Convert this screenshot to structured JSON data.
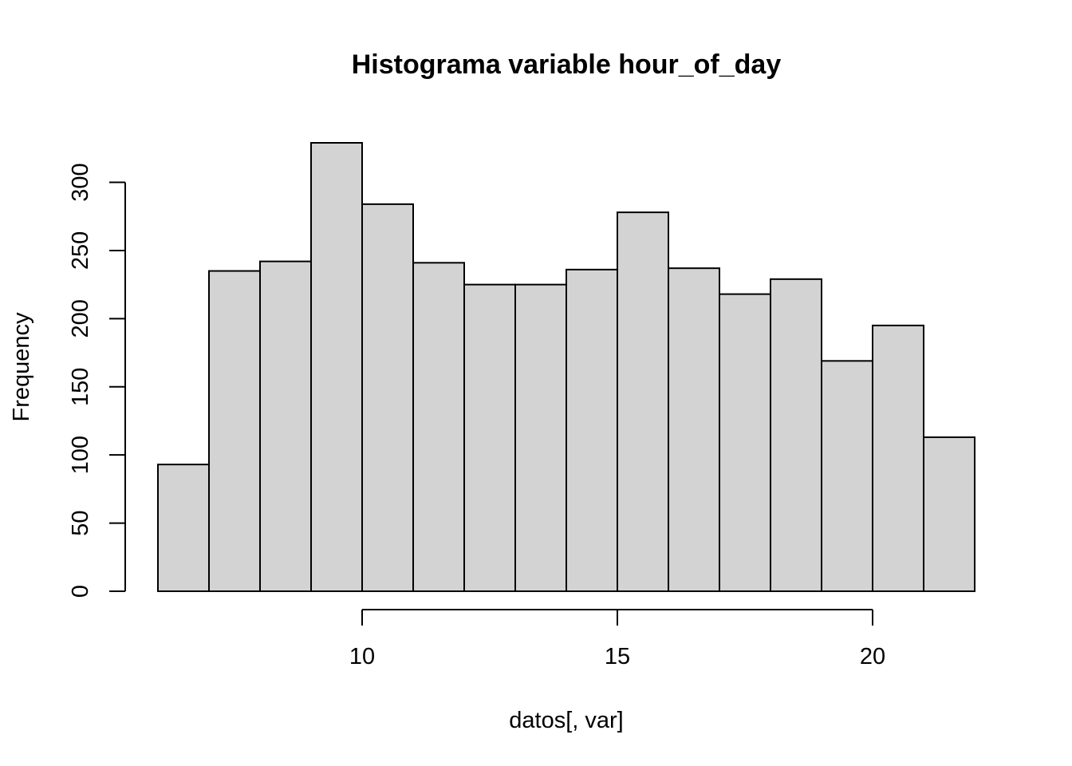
{
  "chart_data": {
    "type": "bar",
    "title": "Histograma variable hour_of_day",
    "xlabel": "datos[, var]",
    "ylabel": "Frequency",
    "bins": [
      {
        "from": 6,
        "to": 7,
        "count": 93
      },
      {
        "from": 7,
        "to": 8,
        "count": 235
      },
      {
        "from": 8,
        "to": 9,
        "count": 242
      },
      {
        "from": 9,
        "to": 10,
        "count": 329
      },
      {
        "from": 10,
        "to": 11,
        "count": 284
      },
      {
        "from": 11,
        "to": 12,
        "count": 241
      },
      {
        "from": 12,
        "to": 13,
        "count": 225
      },
      {
        "from": 13,
        "to": 14,
        "count": 225
      },
      {
        "from": 14,
        "to": 15,
        "count": 236
      },
      {
        "from": 15,
        "to": 16,
        "count": 278
      },
      {
        "from": 16,
        "to": 17,
        "count": 237
      },
      {
        "from": 17,
        "to": 18,
        "count": 218
      },
      {
        "from": 18,
        "to": 19,
        "count": 229
      },
      {
        "from": 19,
        "to": 20,
        "count": 169
      },
      {
        "from": 20,
        "to": 21,
        "count": 195
      },
      {
        "from": 21,
        "to": 22,
        "count": 113
      }
    ],
    "xticks": [
      10,
      15,
      20
    ],
    "yticks": [
      0,
      50,
      100,
      150,
      200,
      250,
      300
    ],
    "xlim": [
      6,
      22
    ],
    "ylim": [
      0,
      329
    ],
    "colors": {
      "bar_fill": "#d3d3d3",
      "bar_stroke": "#000000"
    },
    "grid": false,
    "legend": "none"
  }
}
